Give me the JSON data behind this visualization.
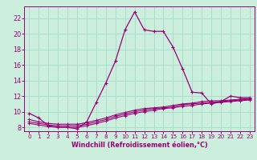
{
  "xlabel": "Windchill (Refroidissement éolien,°C)",
  "background_color": "#cceedd",
  "grid_color": "#aaddcc",
  "line_color": "#990077",
  "x_hours": [
    0,
    1,
    2,
    3,
    4,
    5,
    6,
    7,
    8,
    9,
    10,
    11,
    12,
    13,
    14,
    15,
    16,
    17,
    18,
    19,
    20,
    21,
    22,
    23
  ],
  "temp_line": [
    9.8,
    9.2,
    8.2,
    8.0,
    8.0,
    7.8,
    8.7,
    11.2,
    13.7,
    16.5,
    20.5,
    22.8,
    20.5,
    20.3,
    20.3,
    18.3,
    15.5,
    12.5,
    12.4,
    11.0,
    11.3,
    12.0,
    11.8,
    11.8
  ],
  "wc_lines": [
    [
      8.5,
      8.3,
      8.1,
      8.0,
      8.0,
      8.0,
      8.2,
      8.5,
      8.8,
      9.2,
      9.5,
      9.8,
      10.0,
      10.2,
      10.4,
      10.5,
      10.7,
      10.8,
      11.0,
      11.1,
      11.2,
      11.3,
      11.4,
      11.5
    ],
    [
      8.7,
      8.5,
      8.3,
      8.2,
      8.2,
      8.2,
      8.4,
      8.7,
      9.0,
      9.4,
      9.7,
      10.0,
      10.2,
      10.4,
      10.5,
      10.6,
      10.9,
      11.0,
      11.1,
      11.2,
      11.3,
      11.4,
      11.5,
      11.6
    ],
    [
      9.0,
      8.7,
      8.5,
      8.4,
      8.4,
      8.4,
      8.6,
      8.9,
      9.2,
      9.6,
      9.9,
      10.2,
      10.4,
      10.5,
      10.6,
      10.8,
      11.0,
      11.1,
      11.3,
      11.4,
      11.4,
      11.5,
      11.6,
      11.7
    ]
  ],
  "ylim": [
    7.5,
    23.5
  ],
  "yticks": [
    8,
    10,
    12,
    14,
    16,
    18,
    20,
    22
  ],
  "xlim": [
    -0.5,
    23.5
  ],
  "xticks": [
    0,
    1,
    2,
    3,
    4,
    5,
    6,
    7,
    8,
    9,
    10,
    11,
    12,
    13,
    14,
    15,
    16,
    17,
    18,
    19,
    20,
    21,
    22,
    23
  ]
}
